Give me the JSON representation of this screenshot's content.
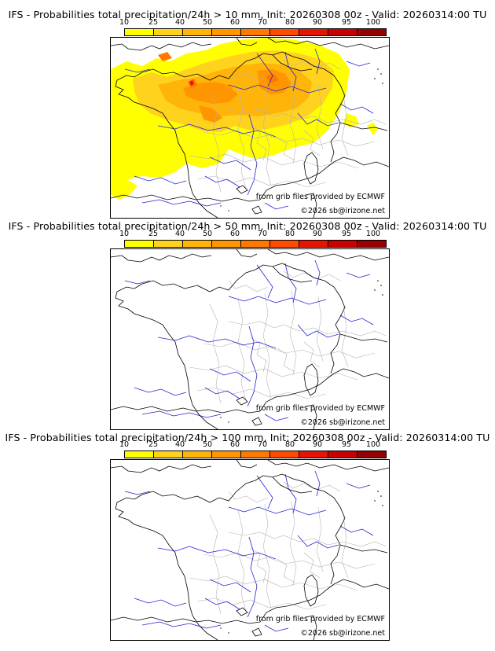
{
  "legend": {
    "ticks": [
      "10",
      "25",
      "40",
      "50",
      "60",
      "70",
      "80",
      "90",
      "95",
      "100"
    ],
    "colors": [
      "#ffff00",
      "#ffd21e",
      "#ffb40a",
      "#ff9600",
      "#ff7800",
      "#ff4b00",
      "#e61400",
      "#c80000",
      "#960000",
      "#5a0000"
    ]
  },
  "panels": [
    {
      "title": "IFS - Probabilities total precipitation/24h > 10 mm, Init: 20260308 00z - Valid: 20260314:00 TU",
      "credit_source": "from grib files provided by ECMWF",
      "credit_copyright": "©2026 sb@irizone.net",
      "probability_field": "widespread"
    },
    {
      "title": "IFS - Probabilities total precipitation/24h > 50 mm, Init: 20260308 00z - Valid: 20260314:00 TU",
      "credit_source": "from grib files provided by ECMWF",
      "credit_copyright": "©2026 sb@irizone.net",
      "probability_field": "none"
    },
    {
      "title": "IFS - Probabilities total precipitation/24h > 100 mm, Init: 20260308 00z - Valid: 20260314:00 TU",
      "credit_source": "from grib files provided by ECMWF",
      "credit_copyright": "©2026 sb@irizone.net",
      "probability_field": "none"
    }
  ]
}
